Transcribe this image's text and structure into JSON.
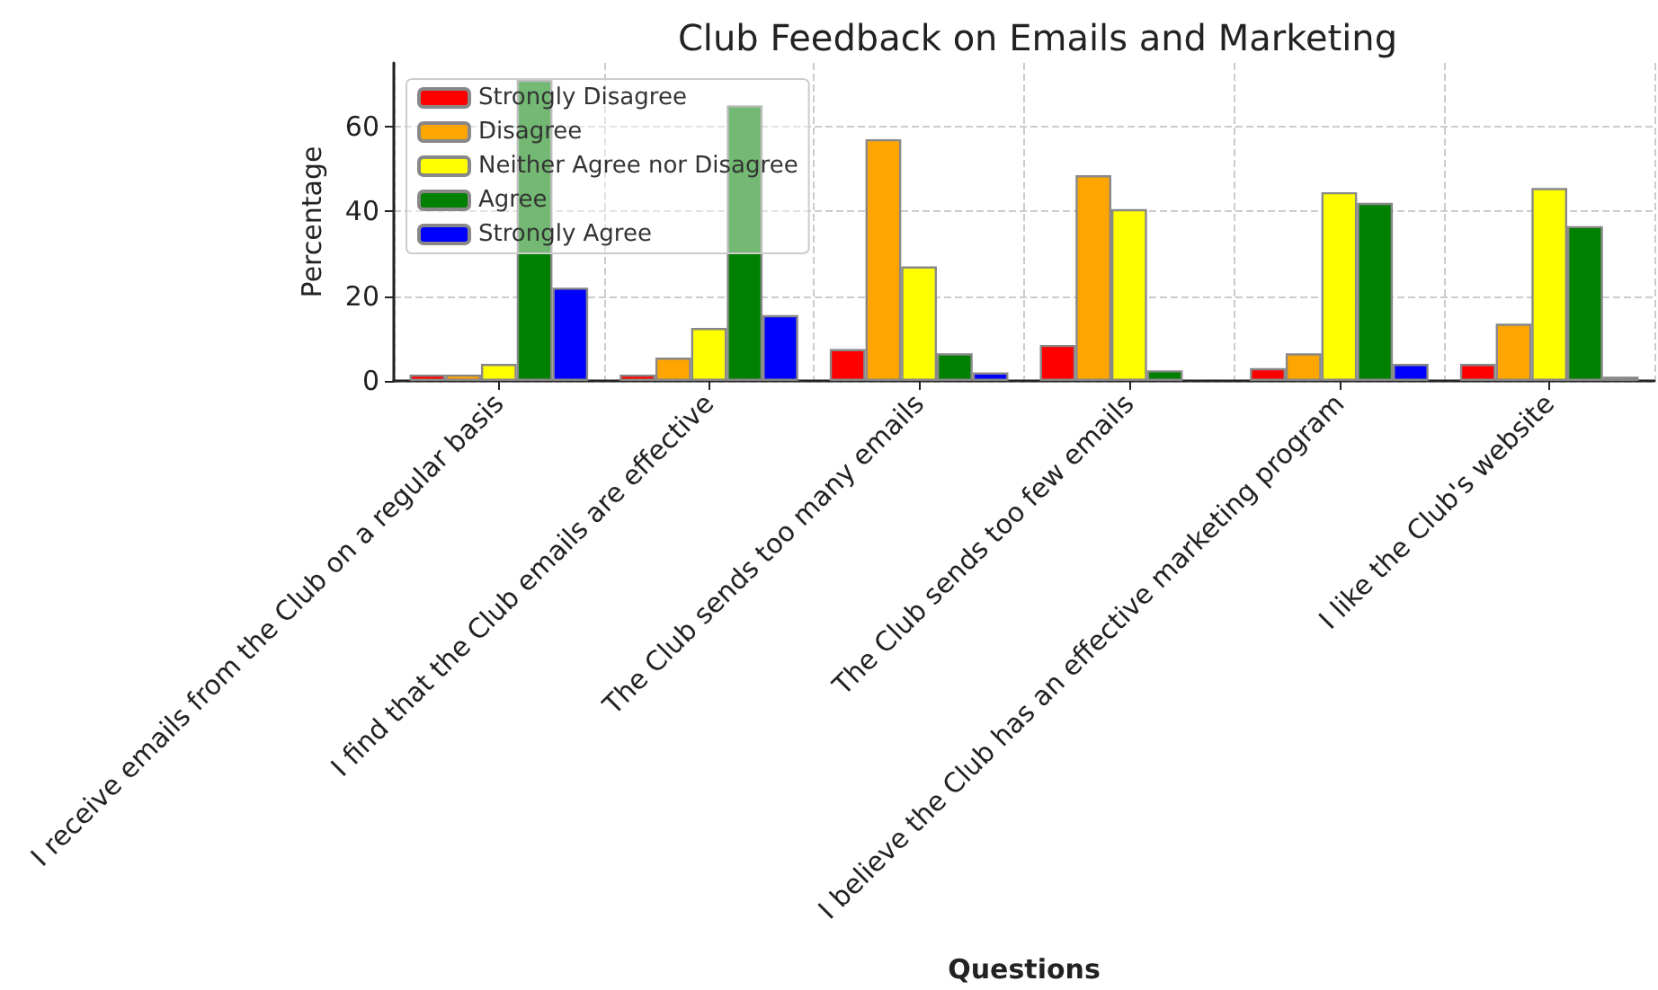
{
  "chart_data": {
    "type": "bar",
    "title": "Club Feedback on Emails and Marketing",
    "xlabel": "Questions",
    "ylabel": "Percentage",
    "categories": [
      "I receive emails from the Club on a regular basis",
      "I find that the Club emails are effective",
      "The Club sends too many emails",
      "The Club sends too few emails",
      "I believe the Club has an effective marketing program",
      "I like the Club's website"
    ],
    "series": [
      {
        "name": "Strongly Disagree",
        "color": "#ff0000",
        "values": [
          1.5,
          1.5,
          7.5,
          8.5,
          3,
          4
        ]
      },
      {
        "name": "Disagree",
        "color": "#ffa500",
        "values": [
          1.5,
          5.5,
          57,
          48.5,
          6.5,
          13.5
        ]
      },
      {
        "name": "Neither Agree nor Disagree",
        "color": "#ffff00",
        "values": [
          4,
          12.5,
          27,
          40.5,
          44.5,
          45.5
        ]
      },
      {
        "name": "Agree",
        "color": "#008000",
        "values": [
          71,
          65,
          6.5,
          2.5,
          42,
          36.5
        ]
      },
      {
        "name": "Strongly Agree",
        "color": "#0000ff",
        "values": [
          22,
          15.5,
          2,
          0,
          4,
          1
        ]
      }
    ],
    "ylim": [
      0,
      75
    ],
    "yticks": [
      0,
      20,
      40,
      60
    ],
    "grid": true,
    "legend": "top left"
  }
}
